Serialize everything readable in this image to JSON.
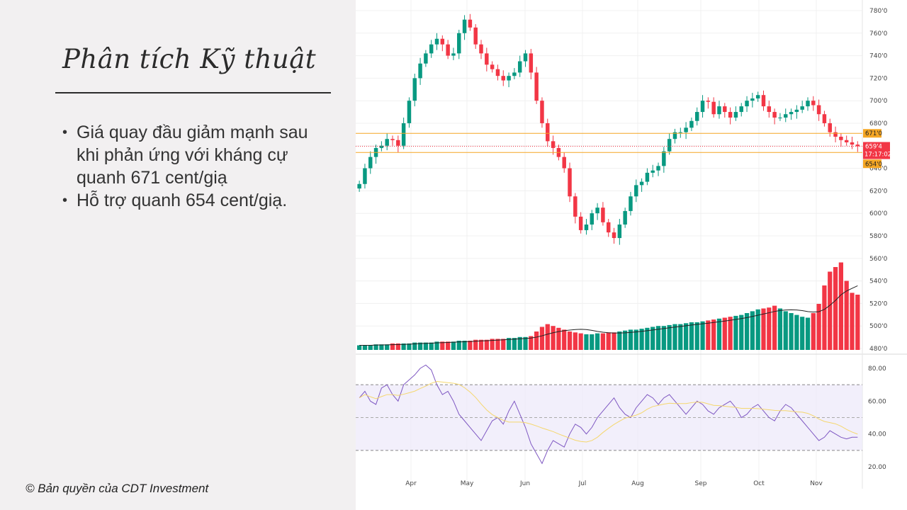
{
  "slide": {
    "title": "Phân tích Kỹ thuật",
    "bullets": [
      "Giá quay đầu giảm mạnh sau khi phản ứng với kháng cự quanh 671 cent/giạ",
      "Hỗ trợ quanh 654 cent/giạ."
    ],
    "copyright": "© Bản quyền của CDT Investment"
  },
  "chart_data": {
    "type": "candlestick",
    "price_axis_ticks": [
      "780'0",
      "760'0",
      "740'0",
      "720'0",
      "700'0",
      "680'0",
      "660'0",
      "640'0",
      "620'0",
      "600'0",
      "580'0",
      "560'0",
      "540'0",
      "520'0",
      "500'0",
      "480'0"
    ],
    "rsi_axis_ticks": [
      "80.00",
      "60.00",
      "40.00",
      "20.00"
    ],
    "x_months": [
      "Apr",
      "May",
      "Jun",
      "Jul",
      "Aug",
      "Sep",
      "Oct",
      "Nov"
    ],
    "resistance": {
      "value": 671,
      "label": "671'0",
      "color": "#f5a623"
    },
    "support": {
      "value": 654,
      "label": "654'0",
      "color": "#f5a623"
    },
    "last_price": {
      "value": 659.5,
      "label": "659'4",
      "time": "17:17:02",
      "color": "#f23645"
    },
    "up_color": "#089981",
    "down_color": "#f23645",
    "price_path": [
      626,
      640,
      650,
      658,
      660,
      666,
      665,
      660,
      680,
      700,
      720,
      733,
      742,
      750,
      755,
      750,
      740,
      742,
      760,
      772,
      765,
      750,
      742,
      732,
      728,
      722,
      718,
      722,
      725,
      735,
      742,
      725,
      700,
      680,
      664,
      658,
      650,
      640,
      615,
      597,
      585,
      590,
      600,
      605,
      592,
      583,
      578,
      590,
      602,
      615,
      625,
      628,
      636,
      638,
      642,
      655,
      666,
      672,
      672,
      676,
      682,
      690,
      700,
      699,
      688,
      695,
      690,
      685,
      690,
      695,
      700,
      702,
      705,
      695,
      690,
      685,
      685,
      688,
      690,
      692,
      695,
      700,
      696,
      688,
      680,
      672,
      668,
      665,
      663,
      661,
      659.5
    ],
    "volume_relative": [
      0.05,
      0.05,
      0.05,
      0.06,
      0.06,
      0.06,
      0.07,
      0.07,
      0.07,
      0.07,
      0.08,
      0.08,
      0.08,
      0.08,
      0.09,
      0.09,
      0.09,
      0.09,
      0.1,
      0.1,
      0.1,
      0.11,
      0.11,
      0.11,
      0.12,
      0.12,
      0.12,
      0.13,
      0.13,
      0.14,
      0.14,
      0.15,
      0.2,
      0.25,
      0.28,
      0.26,
      0.24,
      0.22,
      0.2,
      0.19,
      0.18,
      0.17,
      0.17,
      0.18,
      0.18,
      0.19,
      0.19,
      0.2,
      0.21,
      0.22,
      0.22,
      0.23,
      0.24,
      0.25,
      0.26,
      0.26,
      0.27,
      0.28,
      0.28,
      0.29,
      0.3,
      0.3,
      0.31,
      0.32,
      0.33,
      0.34,
      0.35,
      0.36,
      0.37,
      0.38,
      0.4,
      0.42,
      0.44,
      0.45,
      0.46,
      0.48,
      0.45,
      0.42,
      0.4,
      0.38,
      0.36,
      0.35,
      0.4,
      0.5,
      0.7,
      0.85,
      0.9,
      0.95,
      0.75,
      0.62,
      0.6
    ],
    "rsi_path": [
      62,
      66,
      60,
      58,
      68,
      70,
      64,
      60,
      70,
      73,
      76,
      80,
      82,
      79,
      70,
      64,
      66,
      60,
      52,
      48,
      44,
      40,
      36,
      42,
      48,
      50,
      46,
      54,
      60,
      52,
      44,
      34,
      28,
      22,
      30,
      36,
      34,
      32,
      40,
      46,
      44,
      40,
      44,
      50,
      54,
      58,
      62,
      56,
      52,
      50,
      56,
      60,
      64,
      62,
      58,
      62,
      64,
      60,
      56,
      52,
      56,
      60,
      58,
      54,
      52,
      56,
      58,
      60,
      56,
      50,
      52,
      56,
      58,
      54,
      50,
      48,
      54,
      58,
      56,
      52,
      48,
      44,
      40,
      36,
      38,
      42,
      40,
      38,
      37,
      38,
      38
    ],
    "rsi_bands": {
      "upper": 70,
      "middle": 50,
      "lower": 30
    }
  }
}
